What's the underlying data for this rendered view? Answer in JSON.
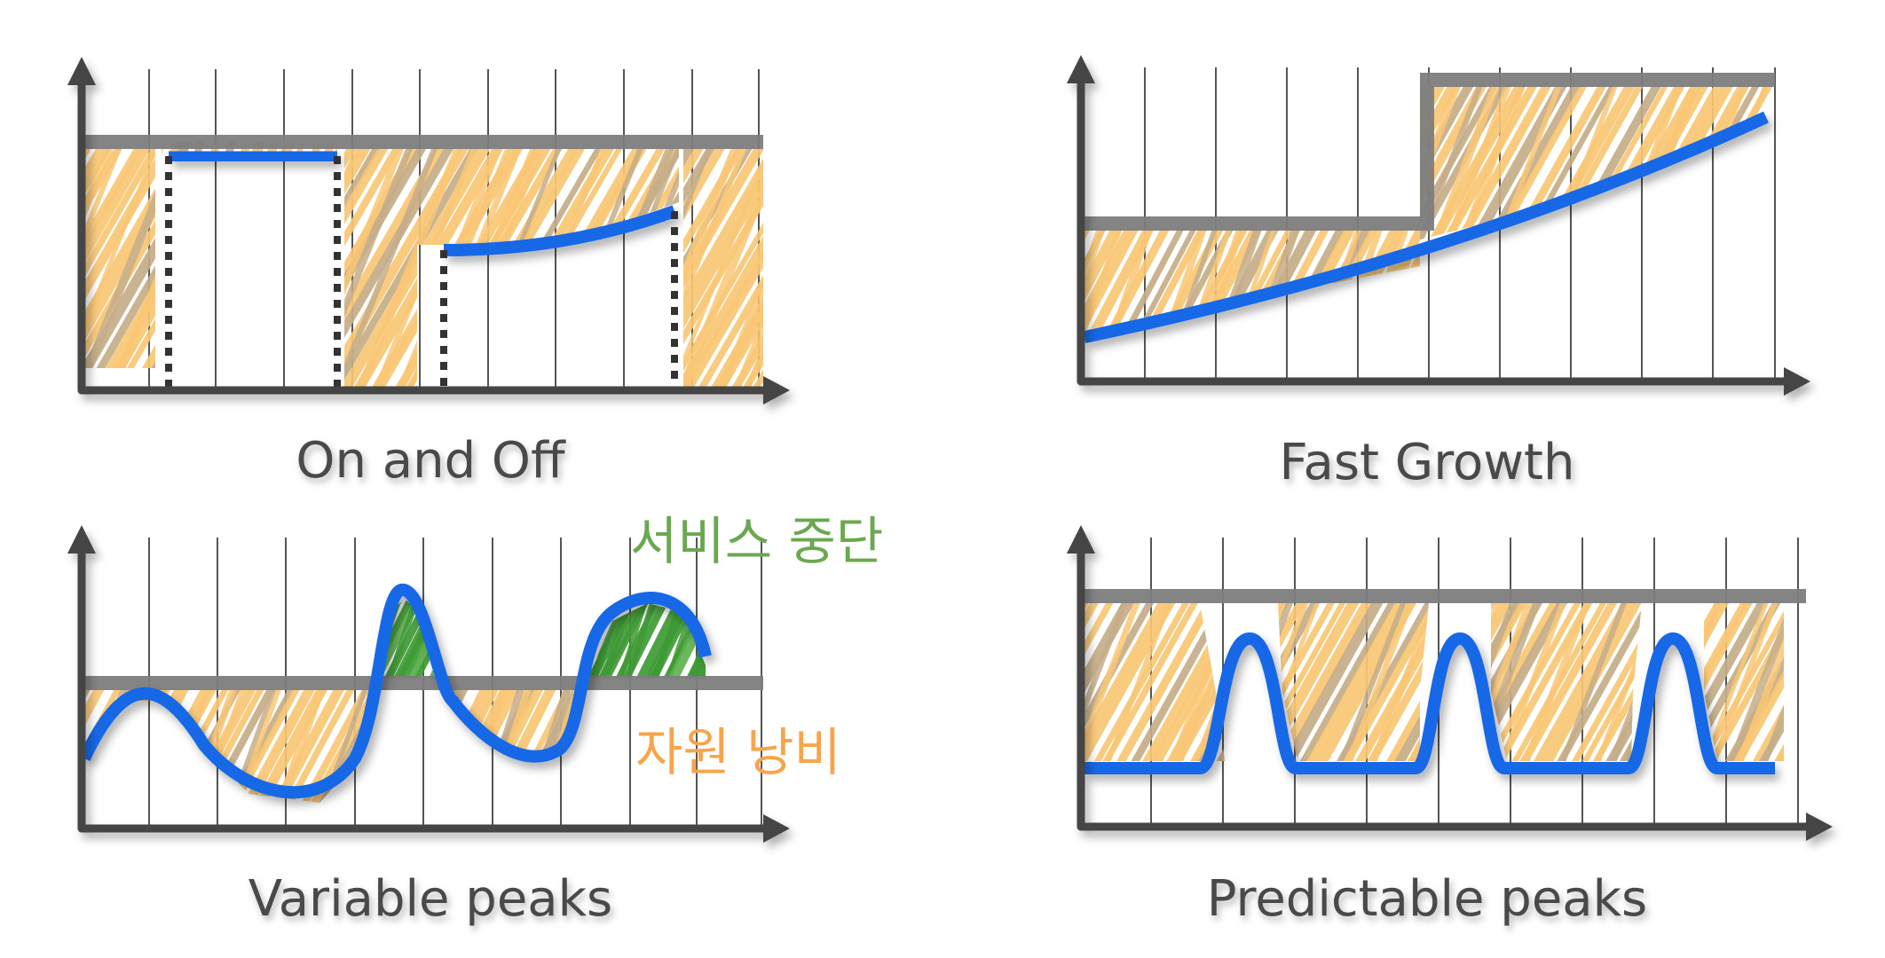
{
  "panels": [
    {
      "id": "on-off",
      "caption": "On and Off",
      "demand_model": "on-off"
    },
    {
      "id": "fast-growth",
      "caption": "Fast Growth",
      "demand_model": "exponential-growth"
    },
    {
      "id": "variable-peaks",
      "caption": "Variable peaks",
      "demand_model": "irregular-wave"
    },
    {
      "id": "predictable-peaks",
      "caption": "Predictable peaks",
      "demand_model": "periodic-peaks"
    }
  ],
  "annotations": {
    "outage_label": "서비스 중단",
    "waste_label": "자원 낭비"
  },
  "colors": {
    "demand_line": "#1467e6",
    "capacity_line": "#7d7d7d",
    "waste_hatch": "#f9c774",
    "waste_hatch_alt": "#c5ad88",
    "outage_hatch": "#3e9a34",
    "outage_text": "#6aa84f",
    "waste_text": "#f6a54c",
    "axis": "#444444",
    "grid": "#555555",
    "caption_text": "#4a4a4a"
  }
}
